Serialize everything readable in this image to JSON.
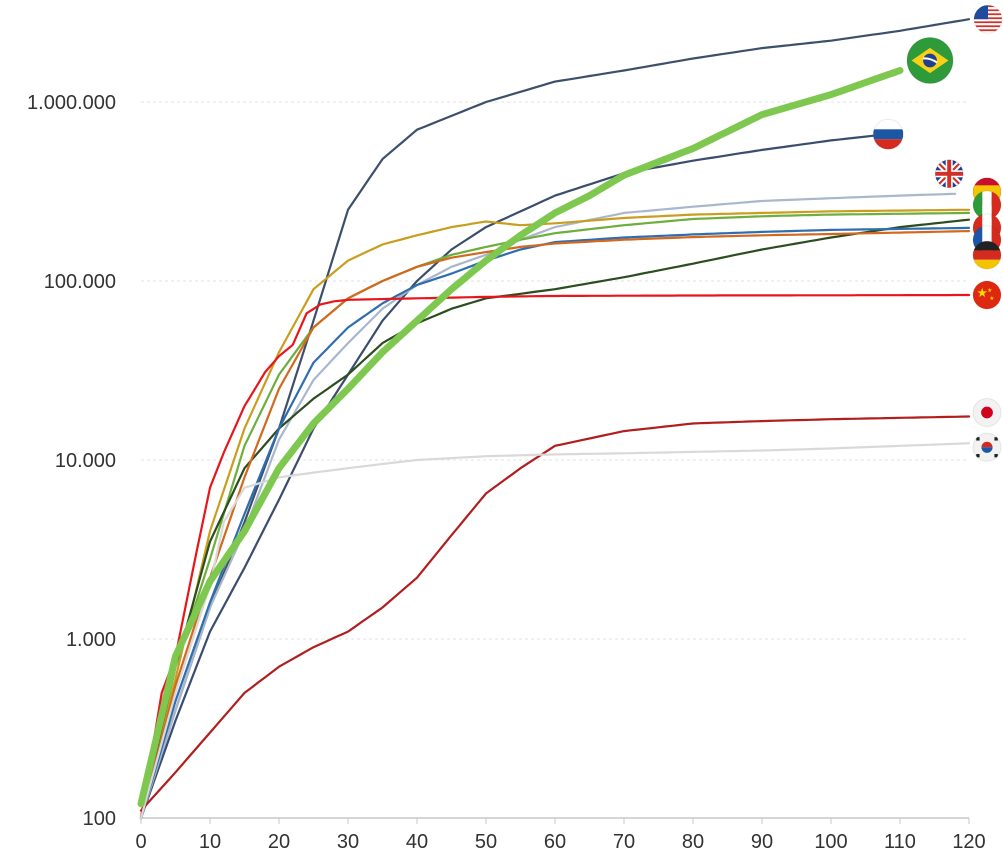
{
  "chart_data": {
    "type": "line",
    "scale": "log",
    "grid": true,
    "xlim": [
      0,
      120
    ],
    "ylim": [
      100,
      3000000
    ],
    "x_ticks": [
      0,
      10,
      20,
      30,
      40,
      50,
      60,
      70,
      80,
      90,
      100,
      110,
      120
    ],
    "x_tick_labels": [
      "0",
      "10",
      "20",
      "30",
      "40",
      "50",
      "60",
      "70",
      "80",
      "90",
      "100",
      "110",
      "120"
    ],
    "y_ticks": [
      100,
      1000,
      10000,
      100000,
      1000000
    ],
    "y_tick_labels": [
      "100",
      "1.000",
      "10.000",
      "100.000",
      "1.000.000"
    ],
    "series": [
      {
        "country": "United States",
        "flag": "us-flag",
        "color": "#3d4f6b",
        "width": 2.2,
        "points": [
          [
            0,
            100
          ],
          [
            5,
            400
          ],
          [
            10,
            1500
          ],
          [
            15,
            4500
          ],
          [
            20,
            15000
          ],
          [
            25,
            60000
          ],
          [
            30,
            250000
          ],
          [
            35,
            480000
          ],
          [
            40,
            700000
          ],
          [
            50,
            1000000
          ],
          [
            60,
            1300000
          ],
          [
            70,
            1500000
          ],
          [
            80,
            1750000
          ],
          [
            90,
            2000000
          ],
          [
            100,
            2200000
          ],
          [
            110,
            2500000
          ],
          [
            120,
            2900000
          ]
        ]
      },
      {
        "country": "Brazil",
        "flag": "brazil-flag",
        "color": "#7ec850",
        "width": 7,
        "points": [
          [
            0,
            120
          ],
          [
            5,
            800
          ],
          [
            10,
            2100
          ],
          [
            15,
            4000
          ],
          [
            20,
            9000
          ],
          [
            25,
            16000
          ],
          [
            30,
            25000
          ],
          [
            35,
            40000
          ],
          [
            40,
            60000
          ],
          [
            45,
            90000
          ],
          [
            50,
            130000
          ],
          [
            55,
            180000
          ],
          [
            60,
            240000
          ],
          [
            65,
            300000
          ],
          [
            70,
            390000
          ],
          [
            80,
            550000
          ],
          [
            90,
            850000
          ],
          [
            100,
            1100000
          ],
          [
            110,
            1500000
          ]
        ]
      },
      {
        "country": "Russia",
        "flag": "russia-flag",
        "color": "#3a4d6e",
        "width": 2.2,
        "points": [
          [
            0,
            100
          ],
          [
            5,
            350
          ],
          [
            10,
            1100
          ],
          [
            15,
            2500
          ],
          [
            20,
            6000
          ],
          [
            25,
            15000
          ],
          [
            30,
            30000
          ],
          [
            35,
            60000
          ],
          [
            40,
            100000
          ],
          [
            45,
            150000
          ],
          [
            50,
            200000
          ],
          [
            60,
            300000
          ],
          [
            70,
            400000
          ],
          [
            80,
            470000
          ],
          [
            90,
            540000
          ],
          [
            100,
            610000
          ],
          [
            108,
            660000
          ]
        ]
      },
      {
        "country": "United Kingdom",
        "flag": "uk-flag",
        "color": "#a9b7cc",
        "width": 2.2,
        "points": [
          [
            0,
            100
          ],
          [
            5,
            400
          ],
          [
            10,
            1500
          ],
          [
            15,
            4000
          ],
          [
            20,
            13000
          ],
          [
            25,
            28000
          ],
          [
            30,
            45000
          ],
          [
            35,
            70000
          ],
          [
            40,
            95000
          ],
          [
            45,
            120000
          ],
          [
            50,
            140000
          ],
          [
            55,
            170000
          ],
          [
            60,
            200000
          ],
          [
            70,
            240000
          ],
          [
            80,
            260000
          ],
          [
            90,
            280000
          ],
          [
            100,
            290000
          ],
          [
            110,
            300000
          ],
          [
            118,
            307000
          ]
        ]
      },
      {
        "country": "Spain",
        "flag": "spain-flag",
        "color": "#c99e1e",
        "width": 2.2,
        "points": [
          [
            0,
            100
          ],
          [
            5,
            600
          ],
          [
            10,
            4000
          ],
          [
            15,
            15000
          ],
          [
            20,
            40000
          ],
          [
            25,
            90000
          ],
          [
            30,
            130000
          ],
          [
            35,
            160000
          ],
          [
            40,
            180000
          ],
          [
            45,
            200000
          ],
          [
            50,
            215000
          ],
          [
            55,
            205000
          ],
          [
            60,
            210000
          ],
          [
            70,
            225000
          ],
          [
            80,
            235000
          ],
          [
            90,
            240000
          ],
          [
            100,
            245000
          ],
          [
            120,
            250000
          ]
        ]
      },
      {
        "country": "Italy",
        "flag": "italy-flag",
        "color": "#6dae3d",
        "width": 2.2,
        "points": [
          [
            0,
            100
          ],
          [
            5,
            700
          ],
          [
            10,
            2800
          ],
          [
            15,
            12000
          ],
          [
            20,
            30000
          ],
          [
            25,
            55000
          ],
          [
            30,
            80000
          ],
          [
            35,
            100000
          ],
          [
            40,
            120000
          ],
          [
            45,
            140000
          ],
          [
            50,
            155000
          ],
          [
            55,
            170000
          ],
          [
            60,
            185000
          ],
          [
            70,
            205000
          ],
          [
            80,
            222000
          ],
          [
            90,
            230000
          ],
          [
            100,
            235000
          ],
          [
            120,
            240000
          ]
        ]
      },
      {
        "country": "Peru",
        "flag": "peru-flag",
        "color": "#2b4d1f",
        "width": 2.2,
        "points": [
          [
            0,
            100
          ],
          [
            5,
            700
          ],
          [
            10,
            3500
          ],
          [
            15,
            9000
          ],
          [
            20,
            15000
          ],
          [
            25,
            22000
          ],
          [
            30,
            30000
          ],
          [
            35,
            45000
          ],
          [
            40,
            58000
          ],
          [
            45,
            70000
          ],
          [
            50,
            80000
          ],
          [
            60,
            90000
          ],
          [
            70,
            105000
          ],
          [
            80,
            125000
          ],
          [
            90,
            150000
          ],
          [
            100,
            175000
          ],
          [
            110,
            200000
          ],
          [
            120,
            220000
          ]
        ]
      },
      {
        "country": "France",
        "flag": "france-flag",
        "color": "#2e6db0",
        "width": 2.2,
        "points": [
          [
            0,
            100
          ],
          [
            5,
            450
          ],
          [
            10,
            1600
          ],
          [
            15,
            5000
          ],
          [
            20,
            15000
          ],
          [
            25,
            35000
          ],
          [
            30,
            55000
          ],
          [
            35,
            75000
          ],
          [
            40,
            95000
          ],
          [
            45,
            110000
          ],
          [
            50,
            130000
          ],
          [
            55,
            150000
          ],
          [
            60,
            165000
          ],
          [
            70,
            175000
          ],
          [
            80,
            182000
          ],
          [
            90,
            188000
          ],
          [
            100,
            193000
          ],
          [
            120,
            198000
          ]
        ]
      },
      {
        "country": "Germany",
        "flag": "germany-flag",
        "color": "#d2691e",
        "width": 2.2,
        "points": [
          [
            0,
            100
          ],
          [
            5,
            550
          ],
          [
            10,
            2200
          ],
          [
            15,
            8000
          ],
          [
            20,
            25000
          ],
          [
            25,
            55000
          ],
          [
            30,
            80000
          ],
          [
            35,
            100000
          ],
          [
            40,
            120000
          ],
          [
            45,
            135000
          ],
          [
            50,
            145000
          ],
          [
            55,
            155000
          ],
          [
            60,
            162000
          ],
          [
            70,
            170000
          ],
          [
            80,
            176000
          ],
          [
            90,
            180000
          ],
          [
            100,
            183000
          ],
          [
            120,
            190000
          ]
        ]
      },
      {
        "country": "China",
        "flag": "china-flag",
        "color": "#e8161b",
        "width": 2.2,
        "points": [
          [
            0,
            100
          ],
          [
            3,
            500
          ],
          [
            5,
            800
          ],
          [
            8,
            3000
          ],
          [
            10,
            7000
          ],
          [
            12,
            11000
          ],
          [
            15,
            20000
          ],
          [
            18,
            31000
          ],
          [
            20,
            38000
          ],
          [
            22,
            44000
          ],
          [
            24,
            66000
          ],
          [
            26,
            74000
          ],
          [
            28,
            77000
          ],
          [
            30,
            78500
          ],
          [
            40,
            80000
          ],
          [
            50,
            81500
          ],
          [
            60,
            82500
          ],
          [
            80,
            83000
          ],
          [
            100,
            83200
          ],
          [
            120,
            83500
          ]
        ]
      },
      {
        "country": "Japan",
        "flag": "japan-flag",
        "color": "#b01e1e",
        "width": 2.2,
        "points": [
          [
            0,
            110
          ],
          [
            5,
            180
          ],
          [
            10,
            300
          ],
          [
            15,
            500
          ],
          [
            20,
            700
          ],
          [
            25,
            900
          ],
          [
            30,
            1100
          ],
          [
            35,
            1500
          ],
          [
            40,
            2200
          ],
          [
            45,
            3800
          ],
          [
            50,
            6500
          ],
          [
            55,
            9000
          ],
          [
            60,
            12000
          ],
          [
            70,
            14500
          ],
          [
            80,
            16000
          ],
          [
            90,
            16500
          ],
          [
            100,
            16900
          ],
          [
            110,
            17200
          ],
          [
            120,
            17500
          ]
        ]
      },
      {
        "country": "South Korea",
        "flag": "south-korea-flag",
        "color": "#d9d9d9",
        "width": 2.2,
        "points": [
          [
            0,
            100
          ],
          [
            5,
            500
          ],
          [
            10,
            2000
          ],
          [
            12,
            4500
          ],
          [
            15,
            7000
          ],
          [
            20,
            8000
          ],
          [
            25,
            8500
          ],
          [
            30,
            9000
          ],
          [
            35,
            9500
          ],
          [
            40,
            10000
          ],
          [
            50,
            10500
          ],
          [
            60,
            10750
          ],
          [
            70,
            10900
          ],
          [
            80,
            11100
          ],
          [
            90,
            11300
          ],
          [
            100,
            11600
          ],
          [
            110,
            12000
          ],
          [
            120,
            12400
          ]
        ]
      }
    ]
  }
}
